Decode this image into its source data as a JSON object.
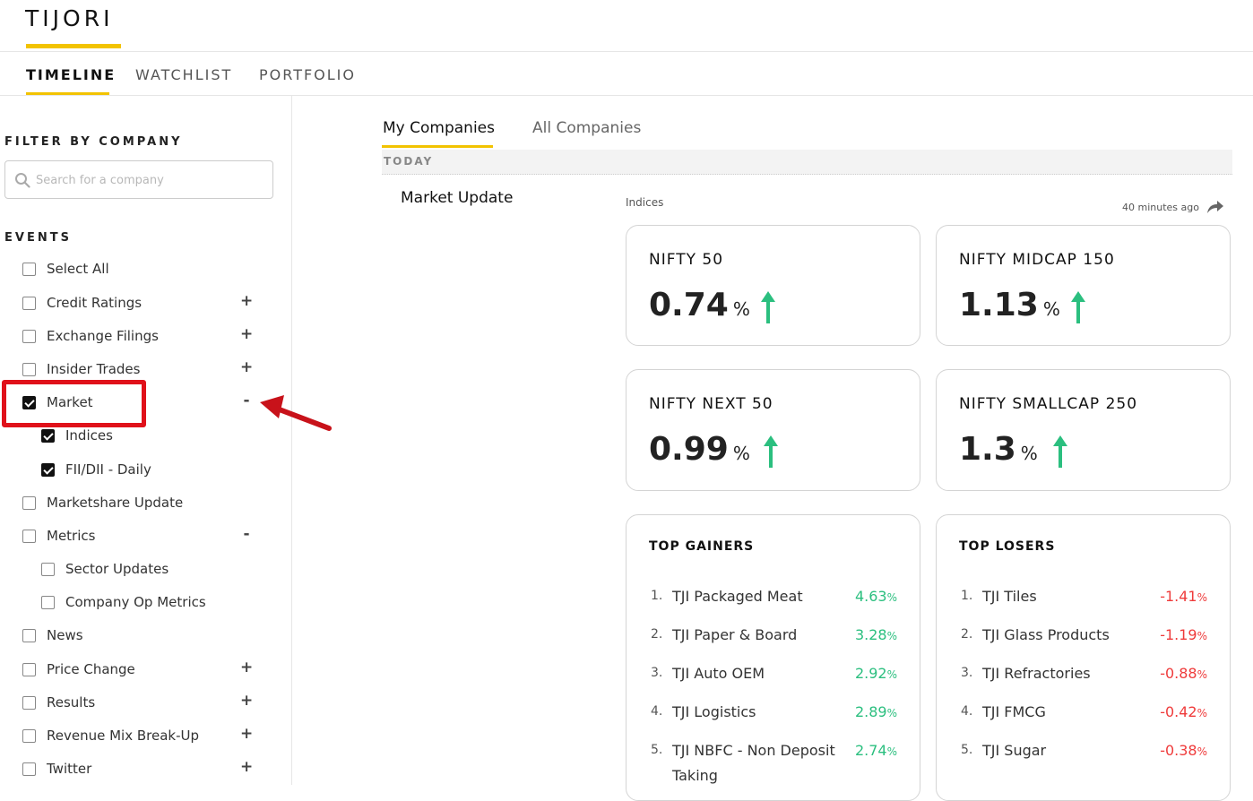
{
  "app": {
    "logo": "TIJORI"
  },
  "nav": {
    "items": [
      {
        "label": "TIMELINE",
        "active": true
      },
      {
        "label": "WATCHLIST",
        "active": false
      },
      {
        "label": "PORTFOLIO",
        "active": false
      }
    ]
  },
  "sidebar": {
    "filter_heading": "FILTER BY COMPANY",
    "search_placeholder": "Search for a company",
    "events_heading": "EVENTS",
    "events": [
      {
        "label": "Select All",
        "checked": false,
        "toggle": ""
      },
      {
        "label": "Credit Ratings",
        "checked": false,
        "toggle": "+"
      },
      {
        "label": "Exchange Filings",
        "checked": false,
        "toggle": "+"
      },
      {
        "label": "Insider Trades",
        "checked": false,
        "toggle": "+"
      },
      {
        "label": "Market",
        "checked": true,
        "toggle": "-"
      },
      {
        "label": "Indices",
        "checked": true,
        "toggle": "",
        "sub": true
      },
      {
        "label": "FII/DII - Daily",
        "checked": true,
        "toggle": "",
        "sub": true
      },
      {
        "label": "Marketshare Update",
        "checked": false,
        "toggle": ""
      },
      {
        "label": "Metrics",
        "checked": false,
        "toggle": "-"
      },
      {
        "label": "Sector Updates",
        "checked": false,
        "toggle": "",
        "sub": true
      },
      {
        "label": "Company Op Metrics",
        "checked": false,
        "toggle": "",
        "sub": true
      },
      {
        "label": "News",
        "checked": false,
        "toggle": ""
      },
      {
        "label": "Price Change",
        "checked": false,
        "toggle": "+"
      },
      {
        "label": "Results",
        "checked": false,
        "toggle": "+"
      },
      {
        "label": "Revenue Mix Break-Up",
        "checked": false,
        "toggle": "+"
      },
      {
        "label": "Twitter",
        "checked": false,
        "toggle": "+"
      }
    ]
  },
  "main": {
    "tabs": [
      {
        "label": "My Companies",
        "active": true
      },
      {
        "label": "All Companies",
        "active": false
      }
    ],
    "day_label": "TODAY",
    "event_title": "Market Update",
    "section_label": "Indices",
    "time_ago": "40 minutes ago",
    "indices": [
      {
        "name": "NIFTY 50",
        "value": "0.74",
        "unit": "%"
      },
      {
        "name": "NIFTY MIDCAP 150",
        "value": "1.13",
        "unit": "%"
      },
      {
        "name": "NIFTY NEXT 50",
        "value": "0.99",
        "unit": "%"
      },
      {
        "name": "NIFTY SMALLCAP 250",
        "value": "1.3",
        "unit": "%"
      }
    ],
    "gainers": {
      "title": "TOP GAINERS",
      "items": [
        {
          "rank": "1.",
          "name": "TJI Packaged Meat",
          "value": "4.63",
          "unit": "%"
        },
        {
          "rank": "2.",
          "name": "TJI Paper & Board",
          "value": "3.28",
          "unit": "%"
        },
        {
          "rank": "3.",
          "name": "TJI Auto OEM",
          "value": "2.92",
          "unit": "%"
        },
        {
          "rank": "4.",
          "name": "TJI Logistics",
          "value": "2.89",
          "unit": "%"
        },
        {
          "rank": "5.",
          "name": "TJI NBFC - Non Deposit Taking",
          "value": "2.74",
          "unit": "%"
        }
      ]
    },
    "losers": {
      "title": "TOP LOSERS",
      "items": [
        {
          "rank": "1.",
          "name": "TJI Tiles",
          "value": "-1.41",
          "unit": "%"
        },
        {
          "rank": "2.",
          "name": "TJI Glass Products",
          "value": "-1.19",
          "unit": "%"
        },
        {
          "rank": "3.",
          "name": "TJI Refractories",
          "value": "-0.88",
          "unit": "%"
        },
        {
          "rank": "4.",
          "name": "TJI FMCG",
          "value": "-0.42",
          "unit": "%"
        },
        {
          "rank": "5.",
          "name": "TJI Sugar",
          "value": "-0.38",
          "unit": "%"
        }
      ]
    },
    "colors": {
      "accent": "#f2c300",
      "gain": "#2bbf7f",
      "loss": "#ef3b3b",
      "highlight": "#e0111a"
    }
  }
}
